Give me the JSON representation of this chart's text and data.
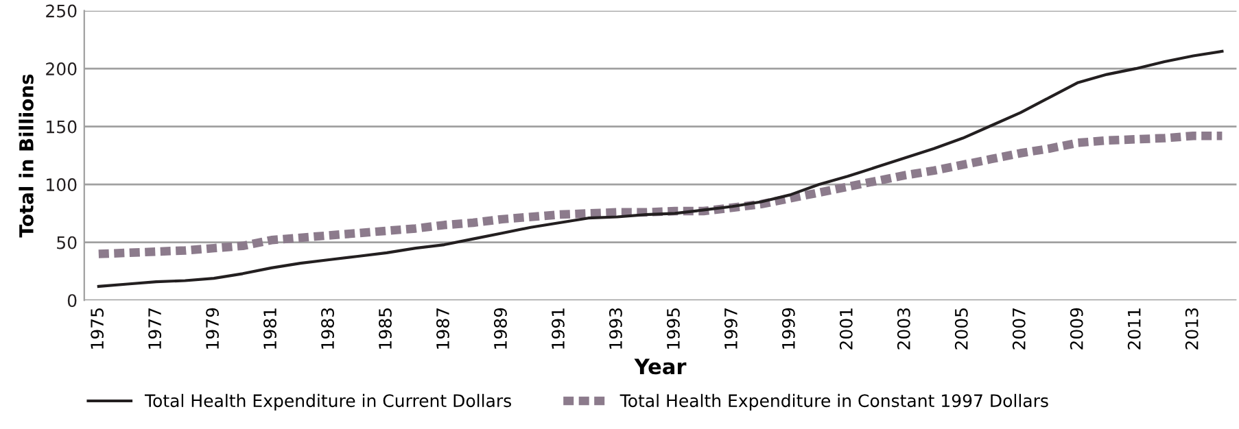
{
  "chart_data": {
    "type": "line",
    "xlabel": "Year",
    "ylabel": "Total in Billions",
    "categories": [
      "1975",
      null,
      "1977",
      null,
      "1979",
      null,
      "1981",
      null,
      "1983",
      null,
      "1985",
      null,
      "1987",
      null,
      "1989",
      null,
      "1991",
      null,
      "1993",
      null,
      "1995",
      null,
      "1997",
      null,
      "1999",
      null,
      "2001",
      null,
      "2003",
      null,
      "2005",
      null,
      "2007",
      null,
      "2009",
      null,
      "2011",
      null,
      "2013",
      null
    ],
    "series": [
      {
        "name": "Total Health Expenditure in Current Dollars",
        "color": "#231f20",
        "line_style": "solid",
        "values": [
          12,
          14,
          16,
          17,
          19,
          23,
          28,
          32,
          35,
          38,
          41,
          45,
          48,
          53,
          58,
          63,
          67,
          71,
          72,
          74,
          75,
          78,
          81,
          85,
          91,
          100,
          107,
          115,
          123,
          131,
          140,
          151,
          162,
          175,
          188,
          195,
          200,
          206,
          211,
          215
        ]
      },
      {
        "name": "Total Health Expenditure in Constant 1997 Dollars",
        "color": "#8c7b8c",
        "line_style": "dotted",
        "values": [
          40,
          41,
          42,
          43,
          45,
          47,
          52,
          54,
          56,
          58,
          60,
          62,
          65,
          67,
          70,
          72,
          74,
          75,
          76,
          76,
          77,
          77,
          80,
          83,
          88,
          93,
          98,
          103,
          108,
          112,
          117,
          122,
          127,
          131,
          136,
          138,
          139,
          140,
          142,
          142
        ]
      }
    ],
    "ylim": [
      0,
      250
    ],
    "yticks": [
      0,
      50,
      100,
      150,
      200,
      250
    ],
    "grid": "y",
    "legend": "bottom",
    "marker": "none"
  }
}
